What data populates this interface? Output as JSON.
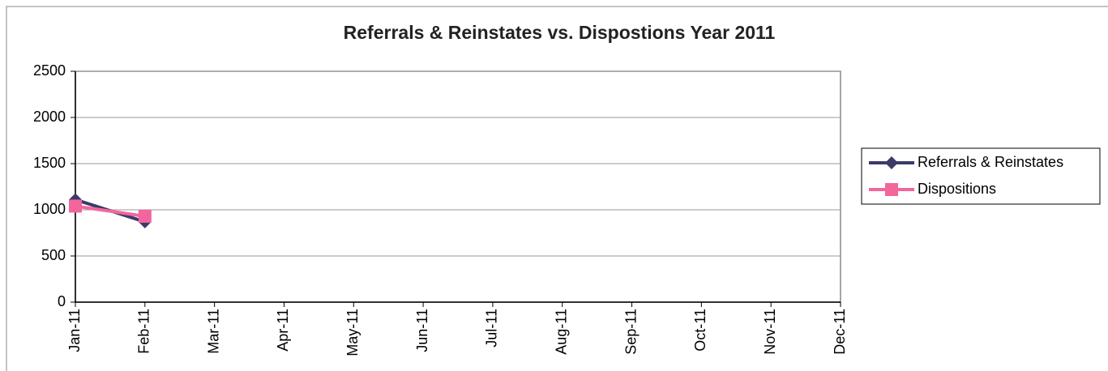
{
  "chart_data": {
    "type": "line",
    "title": "Referrals & Reinstates vs. Dispostions Year 2011",
    "categories": [
      "Jan-11",
      "Feb-11",
      "Mar-11",
      "Apr-11",
      "May-11",
      "Jun-11",
      "Jul-11",
      "Aug-11",
      "Sep-11",
      "Oct-11",
      "Nov-11",
      "Dec-11"
    ],
    "series": [
      {
        "name": "Referrals & Reinstates",
        "color": "#3c3a6a",
        "marker": "diamond",
        "values": [
          1110,
          870,
          null,
          null,
          null,
          null,
          null,
          null,
          null,
          null,
          null,
          null
        ]
      },
      {
        "name": "Dispositions",
        "color": "#f2669c",
        "marker": "square",
        "values": [
          1040,
          930,
          null,
          null,
          null,
          null,
          null,
          null,
          null,
          null,
          null,
          null
        ]
      }
    ],
    "ylim": [
      0,
      2500
    ],
    "yticks": [
      0,
      500,
      1000,
      1500,
      2000,
      2500
    ],
    "grid": true,
    "legend": "right"
  }
}
